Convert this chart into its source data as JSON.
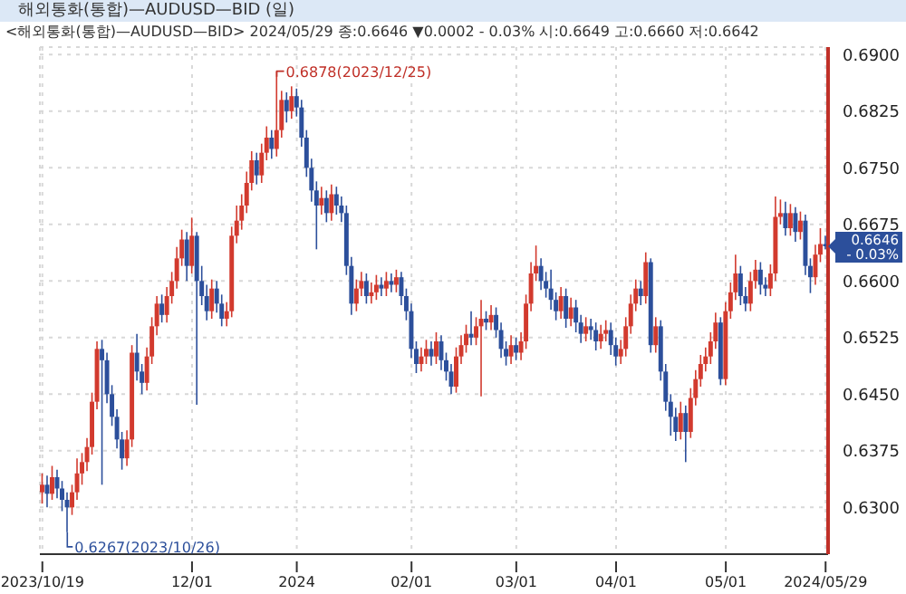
{
  "chart_data": {
    "type": "candlestick",
    "title": "해외통화(통합)—AUDUSD—BID (일)",
    "subtitle": "<해외통화(통합)—AUDUSD—BID> 2024/05/29 종:0.6646 ▼0.0002 - 0.03% 시:0.6649 고:0.6660 저:0.6642",
    "categories": [
      "2023/10/19",
      null,
      null,
      null,
      null,
      null,
      null,
      null,
      null,
      null,
      null,
      null,
      null,
      null,
      null,
      null,
      null,
      null,
      null,
      null,
      null,
      null,
      null,
      null,
      null,
      null,
      null,
      null,
      null,
      null,
      "12/01",
      null,
      null,
      null,
      null,
      null,
      null,
      null,
      null,
      null,
      null,
      null,
      null,
      null,
      null,
      null,
      null,
      null,
      null,
      null,
      null,
      "2024",
      null,
      null,
      null,
      null,
      null,
      null,
      null,
      null,
      null,
      null,
      null,
      null,
      null,
      null,
      null,
      null,
      null,
      null,
      null,
      null,
      null,
      null,
      "02/01",
      null,
      null,
      null,
      null,
      null,
      null,
      null,
      null,
      null,
      null,
      null,
      null,
      null,
      null,
      null,
      null,
      null,
      null,
      null,
      null,
      "03/01",
      null,
      null,
      null,
      null,
      null,
      null,
      null,
      null,
      null,
      null,
      null,
      null,
      null,
      null,
      null,
      null,
      null,
      null,
      null,
      "04/01",
      null,
      null,
      null,
      null,
      null,
      null,
      null,
      null,
      null,
      null,
      null,
      null,
      null,
      null,
      null,
      null,
      null,
      null,
      null,
      null,
      null,
      "05/01",
      null,
      null,
      null,
      null,
      null,
      null,
      null,
      null,
      null,
      null,
      null,
      null,
      null,
      null,
      null,
      null,
      null,
      null,
      null,
      "2024/05/29"
    ],
    "ohlc": [
      [
        0.632,
        0.6345,
        0.6305,
        0.633
      ],
      [
        0.633,
        0.6342,
        0.63,
        0.6318
      ],
      [
        0.6318,
        0.6355,
        0.631,
        0.634
      ],
      [
        0.634,
        0.635,
        0.6312,
        0.6325
      ],
      [
        0.6325,
        0.6335,
        0.6295,
        0.631
      ],
      [
        0.631,
        0.632,
        0.6267,
        0.63
      ],
      [
        0.63,
        0.633,
        0.629,
        0.632
      ],
      [
        0.632,
        0.6365,
        0.631,
        0.6345
      ],
      [
        0.6345,
        0.6372,
        0.633,
        0.636
      ],
      [
        0.636,
        0.6392,
        0.6348,
        0.638
      ],
      [
        0.638,
        0.6452,
        0.637,
        0.644
      ],
      [
        0.644,
        0.652,
        0.643,
        0.651
      ],
      [
        0.651,
        0.6522,
        0.633,
        0.6495
      ],
      [
        0.6495,
        0.6505,
        0.6438,
        0.645
      ],
      [
        0.645,
        0.6462,
        0.6408,
        0.642
      ],
      [
        0.642,
        0.643,
        0.6378,
        0.639
      ],
      [
        0.639,
        0.64,
        0.635,
        0.6365
      ],
      [
        0.6365,
        0.6402,
        0.6355,
        0.639
      ],
      [
        0.639,
        0.6515,
        0.638,
        0.6505
      ],
      [
        0.6505,
        0.653,
        0.6468,
        0.648
      ],
      [
        0.648,
        0.649,
        0.645,
        0.6465
      ],
      [
        0.6465,
        0.6512,
        0.6455,
        0.65
      ],
      [
        0.65,
        0.6552,
        0.649,
        0.654
      ],
      [
        0.654,
        0.658,
        0.6528,
        0.657
      ],
      [
        0.657,
        0.6582,
        0.6545,
        0.6555
      ],
      [
        0.6555,
        0.6592,
        0.6545,
        0.658
      ],
      [
        0.658,
        0.6612,
        0.657,
        0.66
      ],
      [
        0.66,
        0.6645,
        0.659,
        0.663
      ],
      [
        0.663,
        0.6668,
        0.662,
        0.6655
      ],
      [
        0.6655,
        0.6665,
        0.66,
        0.662
      ],
      [
        0.662,
        0.6684,
        0.661,
        0.666
      ],
      [
        0.666,
        0.6665,
        0.6436,
        0.66
      ],
      [
        0.66,
        0.662,
        0.6568,
        0.658
      ],
      [
        0.658,
        0.6595,
        0.6548,
        0.656
      ],
      [
        0.656,
        0.6602,
        0.655,
        0.659
      ],
      [
        0.659,
        0.66,
        0.6558,
        0.657
      ],
      [
        0.657,
        0.6582,
        0.654,
        0.655
      ],
      [
        0.655,
        0.6572,
        0.654,
        0.656
      ],
      [
        0.656,
        0.6672,
        0.6552,
        0.666
      ],
      [
        0.666,
        0.67,
        0.665,
        0.668
      ],
      [
        0.668,
        0.6715,
        0.6668,
        0.67
      ],
      [
        0.67,
        0.6745,
        0.669,
        0.673
      ],
      [
        0.673,
        0.6772,
        0.672,
        0.676
      ],
      [
        0.676,
        0.677,
        0.6728,
        0.674
      ],
      [
        0.674,
        0.6782,
        0.673,
        0.677
      ],
      [
        0.677,
        0.6805,
        0.676,
        0.679
      ],
      [
        0.679,
        0.68,
        0.6762,
        0.6775
      ],
      [
        0.6775,
        0.6878,
        0.6765,
        0.68
      ],
      [
        0.68,
        0.6852,
        0.679,
        0.684
      ],
      [
        0.684,
        0.685,
        0.681,
        0.6825
      ],
      [
        0.6825,
        0.6858,
        0.6815,
        0.6845
      ],
      [
        0.6845,
        0.6855,
        0.6818,
        0.683
      ],
      [
        0.683,
        0.684,
        0.6778,
        0.679
      ],
      [
        0.679,
        0.68,
        0.6738,
        0.675
      ],
      [
        0.675,
        0.6762,
        0.6705,
        0.672
      ],
      [
        0.672,
        0.6732,
        0.6642,
        0.67
      ],
      [
        0.67,
        0.6725,
        0.6688,
        0.671
      ],
      [
        0.671,
        0.672,
        0.6678,
        0.669
      ],
      [
        0.669,
        0.6728,
        0.668,
        0.6715
      ],
      [
        0.6715,
        0.6725,
        0.6688,
        0.67
      ],
      [
        0.67,
        0.6712,
        0.6678,
        0.669
      ],
      [
        0.669,
        0.67,
        0.6608,
        0.662
      ],
      [
        0.662,
        0.6632,
        0.6555,
        0.657
      ],
      [
        0.657,
        0.6602,
        0.656,
        0.659
      ],
      [
        0.659,
        0.6612,
        0.658,
        0.66
      ],
      [
        0.66,
        0.661,
        0.657,
        0.658
      ],
      [
        0.658,
        0.6598,
        0.657,
        0.6585
      ],
      [
        0.6585,
        0.6608,
        0.6575,
        0.6595
      ],
      [
        0.6595,
        0.6605,
        0.658,
        0.659
      ],
      [
        0.659,
        0.6612,
        0.658,
        0.66
      ],
      [
        0.66,
        0.661,
        0.6585,
        0.6595
      ],
      [
        0.6595,
        0.6615,
        0.6585,
        0.6605
      ],
      [
        0.6605,
        0.6612,
        0.6568,
        0.658
      ],
      [
        0.658,
        0.659,
        0.6548,
        0.656
      ],
      [
        0.656,
        0.657,
        0.6498,
        0.651
      ],
      [
        0.651,
        0.652,
        0.6478,
        0.649
      ],
      [
        0.649,
        0.6512,
        0.648,
        0.65
      ],
      [
        0.65,
        0.6522,
        0.649,
        0.651
      ],
      [
        0.651,
        0.652,
        0.6488,
        0.65
      ],
      [
        0.65,
        0.6532,
        0.649,
        0.652
      ],
      [
        0.652,
        0.6528,
        0.6482,
        0.6495
      ],
      [
        0.6495,
        0.6505,
        0.6468,
        0.648
      ],
      [
        0.648,
        0.649,
        0.645,
        0.646
      ],
      [
        0.646,
        0.6512,
        0.6452,
        0.65
      ],
      [
        0.65,
        0.6528,
        0.649,
        0.6515
      ],
      [
        0.6515,
        0.6542,
        0.6505,
        0.653
      ],
      [
        0.653,
        0.656,
        0.6515,
        0.6525
      ],
      [
        0.6525,
        0.6552,
        0.6515,
        0.654
      ],
      [
        0.654,
        0.6575,
        0.6447,
        0.655
      ],
      [
        0.655,
        0.656,
        0.6535,
        0.6545
      ],
      [
        0.6545,
        0.6568,
        0.6535,
        0.6555
      ],
      [
        0.6555,
        0.6565,
        0.6525,
        0.6535
      ],
      [
        0.6535,
        0.6545,
        0.6498,
        0.651
      ],
      [
        0.651,
        0.652,
        0.6488,
        0.65
      ],
      [
        0.65,
        0.6528,
        0.649,
        0.6515
      ],
      [
        0.6515,
        0.6525,
        0.6495,
        0.6505
      ],
      [
        0.6505,
        0.6532,
        0.6495,
        0.652
      ],
      [
        0.652,
        0.6582,
        0.651,
        0.657
      ],
      [
        0.657,
        0.6625,
        0.656,
        0.661
      ],
      [
        0.661,
        0.6647,
        0.66,
        0.662
      ],
      [
        0.662,
        0.663,
        0.6588,
        0.66
      ],
      [
        0.66,
        0.6612,
        0.6578,
        0.659
      ],
      [
        0.659,
        0.6615,
        0.6562,
        0.6575
      ],
      [
        0.6575,
        0.6585,
        0.6548,
        0.656
      ],
      [
        0.656,
        0.6592,
        0.655,
        0.658
      ],
      [
        0.658,
        0.659,
        0.6538,
        0.655
      ],
      [
        0.655,
        0.6578,
        0.654,
        0.6565
      ],
      [
        0.6565,
        0.6575,
        0.6532,
        0.6545
      ],
      [
        0.6545,
        0.6555,
        0.6518,
        0.653
      ],
      [
        0.653,
        0.6552,
        0.652,
        0.654
      ],
      [
        0.654,
        0.655,
        0.6522,
        0.6535
      ],
      [
        0.6535,
        0.6545,
        0.6508,
        0.652
      ],
      [
        0.652,
        0.6542,
        0.651,
        0.653
      ],
      [
        0.653,
        0.6548,
        0.652,
        0.6535
      ],
      [
        0.6535,
        0.6545,
        0.6502,
        0.6515
      ],
      [
        0.6515,
        0.6525,
        0.6488,
        0.65
      ],
      [
        0.65,
        0.6522,
        0.649,
        0.651
      ],
      [
        0.651,
        0.6552,
        0.65,
        0.654
      ],
      [
        0.654,
        0.6582,
        0.653,
        0.657
      ],
      [
        0.657,
        0.6602,
        0.656,
        0.659
      ],
      [
        0.659,
        0.66,
        0.6568,
        0.658
      ],
      [
        0.658,
        0.6638,
        0.657,
        0.6625
      ],
      [
        0.6625,
        0.663,
        0.6505,
        0.6515
      ],
      [
        0.6515,
        0.6552,
        0.6505,
        0.654
      ],
      [
        0.654,
        0.6548,
        0.6468,
        0.648
      ],
      [
        0.648,
        0.649,
        0.6428,
        0.644
      ],
      [
        0.644,
        0.645,
        0.6395,
        0.642
      ],
      [
        0.642,
        0.6432,
        0.6388,
        0.64
      ],
      [
        0.64,
        0.644,
        0.639,
        0.6425
      ],
      [
        0.6425,
        0.6435,
        0.636,
        0.64
      ],
      [
        0.64,
        0.6458,
        0.6392,
        0.6445
      ],
      [
        0.6445,
        0.6482,
        0.6435,
        0.647
      ],
      [
        0.647,
        0.6502,
        0.646,
        0.649
      ],
      [
        0.649,
        0.6512,
        0.648,
        0.65
      ],
      [
        0.65,
        0.6532,
        0.649,
        0.652
      ],
      [
        0.652,
        0.6558,
        0.651,
        0.6545
      ],
      [
        0.6545,
        0.6552,
        0.6462,
        0.647
      ],
      [
        0.647,
        0.6572,
        0.6462,
        0.656
      ],
      [
        0.656,
        0.6598,
        0.655,
        0.6585
      ],
      [
        0.6585,
        0.6635,
        0.6575,
        0.661
      ],
      [
        0.661,
        0.662,
        0.6568,
        0.658
      ],
      [
        0.658,
        0.6592,
        0.656,
        0.657
      ],
      [
        0.657,
        0.6612,
        0.656,
        0.66
      ],
      [
        0.66,
        0.6628,
        0.659,
        0.6615
      ],
      [
        0.6615,
        0.6625,
        0.6582,
        0.6595
      ],
      [
        0.6595,
        0.6605,
        0.658,
        0.659
      ],
      [
        0.659,
        0.6622,
        0.658,
        0.661
      ],
      [
        0.661,
        0.6712,
        0.66,
        0.6685
      ],
      [
        0.6685,
        0.6708,
        0.6675,
        0.669
      ],
      [
        0.669,
        0.6705,
        0.666,
        0.667
      ],
      [
        0.667,
        0.6702,
        0.666,
        0.669
      ],
      [
        0.669,
        0.6698,
        0.6652,
        0.6665
      ],
      [
        0.6665,
        0.6692,
        0.6655,
        0.668
      ],
      [
        0.668,
        0.6688,
        0.6608,
        0.662
      ],
      [
        0.662,
        0.663,
        0.6584,
        0.6605
      ],
      [
        0.6605,
        0.6648,
        0.6595,
        0.6635
      ],
      [
        0.6635,
        0.667,
        0.6625,
        0.6649
      ],
      [
        0.6649,
        0.666,
        0.6642,
        0.6646
      ]
    ],
    "colors": [
      "#d23a2e",
      "#2c4f9b",
      "#d23a2e",
      "#2c4f9b",
      "#2c4f9b",
      "#2c4f9b",
      "#d23a2e",
      "#d23a2e",
      "#d23a2e",
      "#d23a2e",
      "#d23a2e",
      "#d23a2e",
      "#2c4f9b",
      "#2c4f9b",
      "#2c4f9b",
      "#2c4f9b",
      "#2c4f9b",
      "#d23a2e",
      "#d23a2e",
      "#2c4f9b",
      "#2c4f9b",
      "#d23a2e",
      "#d23a2e",
      "#d23a2e",
      "#2c4f9b",
      "#d23a2e",
      "#d23a2e",
      "#d23a2e",
      "#d23a2e",
      "#2c4f9b",
      "#d23a2e",
      "#2c4f9b",
      "#2c4f9b",
      "#2c4f9b",
      "#d23a2e",
      "#2c4f9b",
      "#2c4f9b",
      "#d23a2e",
      "#d23a2e",
      "#d23a2e",
      "#d23a2e",
      "#d23a2e",
      "#d23a2e",
      "#2c4f9b",
      "#d23a2e",
      "#d23a2e",
      "#2c4f9b",
      "#d23a2e",
      "#d23a2e",
      "#2c4f9b",
      "#d23a2e",
      "#2c4f9b",
      "#2c4f9b",
      "#2c4f9b",
      "#2c4f9b",
      "#2c4f9b",
      "#d23a2e",
      "#2c4f9b",
      "#d23a2e",
      "#2c4f9b",
      "#2c4f9b",
      "#2c4f9b",
      "#2c4f9b",
      "#d23a2e",
      "#d23a2e",
      "#2c4f9b",
      "#d23a2e",
      "#d23a2e",
      "#2c4f9b",
      "#d23a2e",
      "#2c4f9b",
      "#d23a2e",
      "#2c4f9b",
      "#2c4f9b",
      "#2c4f9b",
      "#2c4f9b",
      "#d23a2e",
      "#d23a2e",
      "#2c4f9b",
      "#d23a2e",
      "#2c4f9b",
      "#2c4f9b",
      "#2c4f9b",
      "#d23a2e",
      "#d23a2e",
      "#d23a2e",
      "#2c4f9b",
      "#d23a2e",
      "#d23a2e",
      "#2c4f9b",
      "#d23a2e",
      "#2c4f9b",
      "#2c4f9b",
      "#2c4f9b",
      "#d23a2e",
      "#2c4f9b",
      "#d23a2e",
      "#d23a2e",
      "#d23a2e",
      "#d23a2e",
      "#2c4f9b",
      "#2c4f9b",
      "#2c4f9b",
      "#2c4f9b",
      "#d23a2e",
      "#2c4f9b",
      "#d23a2e",
      "#2c4f9b",
      "#2c4f9b",
      "#d23a2e",
      "#2c4f9b",
      "#2c4f9b",
      "#d23a2e",
      "#d23a2e",
      "#2c4f9b",
      "#2c4f9b",
      "#d23a2e",
      "#d23a2e",
      "#d23a2e",
      "#d23a2e",
      "#2c4f9b",
      "#d23a2e",
      "#2c4f9b",
      "#d23a2e",
      "#2c4f9b",
      "#2c4f9b",
      "#2c4f9b",
      "#2c4f9b",
      "#d23a2e",
      "#2c4f9b",
      "#d23a2e",
      "#d23a2e",
      "#d23a2e",
      "#d23a2e",
      "#d23a2e",
      "#d23a2e",
      "#2c4f9b",
      "#d23a2e",
      "#d23a2e",
      "#d23a2e",
      "#2c4f9b",
      "#2c4f9b",
      "#d23a2e",
      "#d23a2e",
      "#2c4f9b",
      "#2c4f9b",
      "#d23a2e",
      "#d23a2e",
      "#d23a2e",
      "#2c4f9b",
      "#d23a2e",
      "#2c4f9b",
      "#d23a2e",
      "#2c4f9b",
      "#2c4f9b",
      "#d23a2e",
      "#d23a2e",
      "#2c4f9b"
    ],
    "ylim": [
      0.6238,
      0.691
    ],
    "yticks": [
      {
        "value": 0.63,
        "label": "0.6300"
      },
      {
        "value": 0.6375,
        "label": "0.6375"
      },
      {
        "value": 0.645,
        "label": "0.6450"
      },
      {
        "value": 0.6525,
        "label": "0.6525"
      },
      {
        "value": 0.66,
        "label": "0.6600"
      },
      {
        "value": 0.6675,
        "label": "0.6675"
      },
      {
        "value": 0.675,
        "label": "0.6750"
      },
      {
        "value": 0.6825,
        "label": "0.6825"
      },
      {
        "value": 0.69,
        "label": "0.6900"
      }
    ],
    "annotations": [
      "0.6878(2023/12/25)",
      "0.6267(2023/10/26)",
      "0.6646",
      "- 0.03%"
    ],
    "grid": true,
    "legend": false
  }
}
